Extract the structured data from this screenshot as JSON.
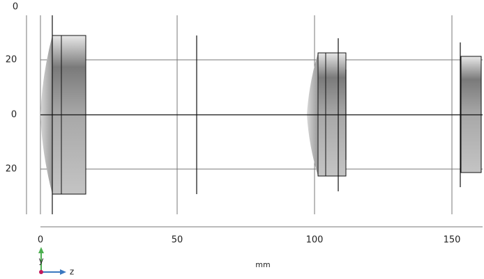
{
  "axes": {
    "top_label": "0",
    "y_ticks": [
      "20",
      "0",
      "20"
    ],
    "x_ticks": [
      "0",
      "50",
      "100",
      "150"
    ],
    "x_label": "mm"
  },
  "triad": {
    "y": "y",
    "z": "z"
  }
}
